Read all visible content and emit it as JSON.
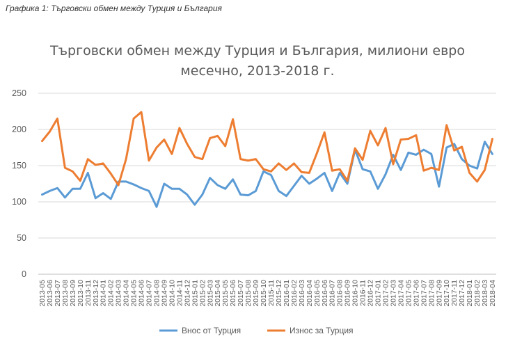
{
  "caption": "Графика 1: Търговски обмен между Турция и България",
  "chart_data": {
    "type": "line",
    "title_line1": "Търговски обмен между Турция и България, милиони евро",
    "title_line2": "месечно, 2013-2018 г.",
    "xlabel": "",
    "ylabel": "",
    "ylim": [
      0,
      250
    ],
    "yticks": [
      0,
      50,
      100,
      150,
      200,
      250
    ],
    "grid": true,
    "legend_position": "bottom",
    "categories": [
      "2013-05",
      "2013-06",
      "2013-07",
      "2013-08",
      "2013-09",
      "2013-10",
      "2013-11",
      "2013-12",
      "2014-01",
      "2014-02",
      "2014-03",
      "2014-04",
      "2014-05",
      "2014-06",
      "2014-07",
      "2014-08",
      "2014-09",
      "2014-10",
      "2014-11",
      "2014-12",
      "2015-01",
      "2015-02",
      "2015-03",
      "2015-04",
      "2015-05",
      "2015-06",
      "2015-07",
      "2015-08",
      "2015-09",
      "2015-10",
      "2015-11",
      "2015-12",
      "2016-01",
      "2016-02",
      "2016-03",
      "2016-04",
      "2016-05",
      "2016-06",
      "2016-07",
      "2016-08",
      "2016-09",
      "2016-10",
      "2016-11",
      "2016-12",
      "2017-01",
      "2017-02",
      "2017-03",
      "2017-04",
      "2017-05",
      "2017-06",
      "2017-07",
      "2017-08",
      "2017-09",
      "2017-10",
      "2017-11",
      "2017-12",
      "2018-01",
      "2018-02",
      "2018-03",
      "2018-04"
    ],
    "series": [
      {
        "name": "Внос от Турция",
        "color": "#5b9bd5",
        "values": [
          110,
          115,
          119,
          106,
          118,
          118,
          140,
          105,
          112,
          104,
          128,
          128,
          124,
          119,
          115,
          93,
          125,
          118,
          118,
          110,
          96,
          110,
          133,
          123,
          118,
          131,
          110,
          109,
          115,
          142,
          137,
          115,
          108,
          122,
          136,
          125,
          132,
          140,
          115,
          140,
          125,
          172,
          145,
          142,
          118,
          138,
          165,
          144,
          168,
          165,
          172,
          166,
          121,
          175,
          180,
          159,
          150,
          146,
          183,
          166
        ]
      },
      {
        "name": "Износ за Турция",
        "color": "#ed7d31",
        "values": [
          184,
          197,
          215,
          147,
          142,
          129,
          159,
          151,
          153,
          139,
          123,
          159,
          215,
          224,
          157,
          175,
          186,
          166,
          202,
          180,
          162,
          159,
          188,
          191,
          177,
          214,
          159,
          157,
          159,
          145,
          142,
          153,
          144,
          153,
          141,
          140,
          167,
          196,
          143,
          145,
          129,
          174,
          158,
          198,
          178,
          202,
          152,
          186,
          187,
          192,
          143,
          147,
          144,
          206,
          171,
          176,
          140,
          128,
          144,
          187
        ]
      }
    ]
  }
}
